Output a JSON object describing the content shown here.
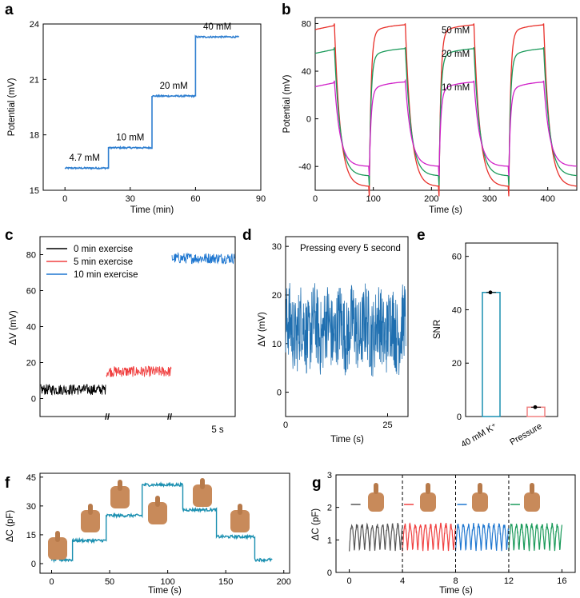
{
  "panels": {
    "a": "a",
    "b": "b",
    "c": "c",
    "d": "d",
    "e": "e",
    "f": "f",
    "g": "g"
  },
  "chart_data": [
    {
      "id": "a",
      "type": "line",
      "xlabel": "Time (min)",
      "ylabel": "Potential (mV)",
      "xlim": [
        -10,
        90
      ],
      "ylim": [
        15,
        24
      ],
      "xticks": [
        0,
        30,
        60,
        90
      ],
      "yticks": [
        15,
        18,
        21,
        24
      ],
      "series": [
        {
          "color": "#2f7fd0",
          "segments": [
            {
              "x0": 0,
              "x1": 20,
              "y": 16.2
            },
            {
              "x0": 20,
              "x1": 40,
              "y": 17.3
            },
            {
              "x0": 40,
              "x1": 60,
              "y": 20.1
            },
            {
              "x0": 60,
              "x1": 80,
              "y": 23.3
            }
          ]
        }
      ],
      "annotations": [
        {
          "text": "4.7 mM",
          "x": 9,
          "y": 16.6
        },
        {
          "text": "10 mM",
          "x": 30,
          "y": 17.7
        },
        {
          "text": "20 mM",
          "x": 50,
          "y": 20.5
        },
        {
          "text": "40 mM",
          "x": 70,
          "y": 23.7
        }
      ]
    },
    {
      "id": "b",
      "type": "line",
      "xlabel": "Time (s)",
      "ylabel": "Potential (mV)",
      "xlim": [
        0,
        450
      ],
      "ylim": [
        -60,
        85
      ],
      "xticks": [
        0,
        100,
        200,
        300,
        400
      ],
      "yticks": [
        -40,
        0,
        40,
        80
      ],
      "cycles": [
        {
          "on": 0,
          "off": 33
        },
        {
          "on": 93,
          "off": 155
        },
        {
          "on": 213,
          "off": 273
        },
        {
          "on": 333,
          "off": 393
        }
      ],
      "series": [
        {
          "label": "50 mM",
          "color": "#e8302a",
          "high": 80,
          "low": -57
        },
        {
          "label": "20 mM",
          "color": "#1a9a5a",
          "high": 60,
          "low": -48
        },
        {
          "label": "10 mM",
          "color": "#d020c8",
          "high": 32,
          "low": -40
        }
      ]
    },
    {
      "id": "c",
      "type": "line",
      "ylabel": "ΔV (mV)",
      "ylim": [
        -10,
        90
      ],
      "yticks": [
        0,
        20,
        40,
        60,
        80
      ],
      "scale_bar": "5 s",
      "legend": [
        "0 min exercise",
        "5 min exercise",
        "10 min exercise"
      ],
      "series": [
        {
          "name": "0 min exercise",
          "color": "#000000",
          "mean": 5,
          "noise": 2
        },
        {
          "name": "5 min exercise",
          "color": "#f04040",
          "mean": 15,
          "noise": 2
        },
        {
          "name": "10 min exercise",
          "color": "#1f77d0",
          "mean": 78,
          "noise": 2
        }
      ]
    },
    {
      "id": "d",
      "type": "line",
      "xlabel": "Time (s)",
      "ylabel": "ΔV (mV)",
      "xlim": [
        0,
        30
      ],
      "ylim": [
        -5,
        32
      ],
      "xticks": [
        0,
        25
      ],
      "yticks": [
        0,
        10,
        20,
        30
      ],
      "title": "Pressing every 5 second",
      "series": [
        {
          "color": "#1f6fb0",
          "mean": 13,
          "amplitude": 8
        }
      ]
    },
    {
      "id": "e",
      "type": "bar",
      "ylabel": "SNR",
      "ylim": [
        0,
        65
      ],
      "yticks": [
        0,
        20,
        40,
        60
      ],
      "categories": [
        "40 mM K⁺",
        "Pressure"
      ],
      "values": [
        46.5,
        3.5
      ],
      "colors": [
        "#1a8fb0",
        "#f08080"
      ]
    },
    {
      "id": "f",
      "type": "line",
      "xlabel": "Time (s)",
      "ylabel": "ΔC (pF)",
      "xlim": [
        -10,
        205
      ],
      "ylim": [
        -5,
        47
      ],
      "xticks": [
        0,
        50,
        100,
        150,
        200
      ],
      "yticks": [
        0,
        15,
        30,
        45
      ],
      "series": [
        {
          "color": "#1a8fb0",
          "segments": [
            {
              "x0": 0,
              "x1": 18,
              "y": 2
            },
            {
              "x0": 18,
              "x1": 47,
              "y": 12
            },
            {
              "x0": 47,
              "x1": 78,
              "y": 25
            },
            {
              "x0": 78,
              "x1": 113,
              "y": 41
            },
            {
              "x0": 113,
              "x1": 142,
              "y": 28
            },
            {
              "x0": 142,
              "x1": 175,
              "y": 14
            },
            {
              "x0": 175,
              "x1": 190,
              "y": 2
            }
          ]
        }
      ]
    },
    {
      "id": "g",
      "type": "line",
      "xlabel": "Time (s)",
      "ylabel": "ΔC (pF)",
      "xlim": [
        -1,
        17
      ],
      "ylim": [
        0,
        3
      ],
      "xticks": [
        0,
        4,
        8,
        12,
        16
      ],
      "yticks": [
        0,
        1,
        2,
        3
      ],
      "series": [
        {
          "color": "#555555",
          "x0": 0,
          "x1": 4
        },
        {
          "color": "#f04040",
          "x0": 4,
          "x1": 8
        },
        {
          "color": "#1f77d0",
          "x0": 8,
          "x1": 12
        },
        {
          "color": "#1a9a5a",
          "x0": 12,
          "x1": 16
        }
      ]
    }
  ]
}
